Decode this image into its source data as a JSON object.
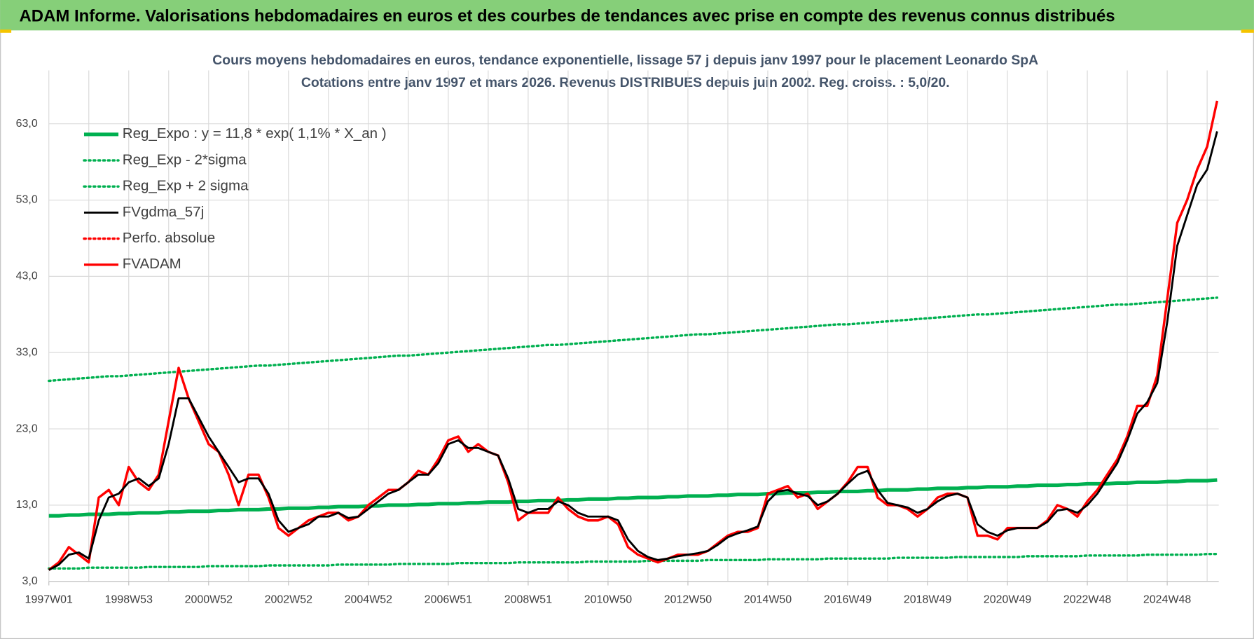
{
  "header": {
    "title": "ADAM Informe. Valorisations hebdomadaires en euros et des courbes de tendances avec prise en compte des revenus connus distribués"
  },
  "chart_data": {
    "type": "line",
    "title": "Cours moyens hebdomadaires en euros, tendance exponentielle, lissage 57 j depuis janv 1997  pour le  placement Leonardo SpA",
    "subtitle": "Cotations entre janv 1997 et mars 2026. Revenus DISTRIBUES depuis juin 2002. Reg. croiss. : 5,0/20.",
    "categories": [
      "1997W01",
      null,
      null,
      null,
      null,
      null,
      null,
      null,
      "1998W53",
      null,
      null,
      null,
      null,
      null,
      null,
      null,
      "2000W52",
      null,
      null,
      null,
      null,
      null,
      null,
      null,
      "2002W52",
      null,
      null,
      null,
      null,
      null,
      null,
      null,
      "2004W52",
      null,
      null,
      null,
      null,
      null,
      null,
      null,
      "2006W51",
      null,
      null,
      null,
      null,
      null,
      null,
      null,
      "2008W51",
      null,
      null,
      null,
      null,
      null,
      null,
      null,
      "2010W50",
      null,
      null,
      null,
      null,
      null,
      null,
      null,
      "2012W50",
      null,
      null,
      null,
      null,
      null,
      null,
      null,
      "2014W50",
      null,
      null,
      null,
      null,
      null,
      null,
      null,
      "2016W49",
      null,
      null,
      null,
      null,
      null,
      null,
      null,
      "2018W49",
      null,
      null,
      null,
      null,
      null,
      null,
      null,
      "2020W49",
      null,
      null,
      null,
      null,
      null,
      null,
      null,
      "2022W48",
      null,
      null,
      null,
      null,
      null,
      null,
      null,
      "2024W48",
      null,
      null,
      null,
      null,
      null
    ],
    "ylim": [
      3,
      70
    ],
    "yticks": [
      {
        "value": 3,
        "label": "3,0"
      },
      {
        "value": 13,
        "label": "13,0"
      },
      {
        "value": 23,
        "label": "23,0"
      },
      {
        "value": 33,
        "label": "33,0"
      },
      {
        "value": 43,
        "label": "43,0"
      },
      {
        "value": 53,
        "label": "53,0"
      },
      {
        "value": 63,
        "label": "63,0"
      }
    ],
    "grid": true,
    "legend": "upper left",
    "series": [
      {
        "name": "Reg_Expo : y = 11,8 * exp( 1,1% *  X_an )",
        "color": "#00b050",
        "style": "solid",
        "values": [
          11.6,
          11.6,
          11.7,
          11.7,
          11.8,
          11.8,
          11.8,
          11.9,
          11.9,
          12.0,
          12.0,
          12.0,
          12.1,
          12.1,
          12.2,
          12.2,
          12.2,
          12.3,
          12.3,
          12.4,
          12.4,
          12.4,
          12.5,
          12.5,
          12.6,
          12.6,
          12.6,
          12.7,
          12.7,
          12.8,
          12.8,
          12.8,
          12.9,
          12.9,
          13.0,
          13.0,
          13.0,
          13.1,
          13.1,
          13.2,
          13.2,
          13.2,
          13.3,
          13.3,
          13.4,
          13.4,
          13.4,
          13.5,
          13.5,
          13.6,
          13.6,
          13.6,
          13.7,
          13.7,
          13.8,
          13.8,
          13.8,
          13.9,
          13.9,
          14.0,
          14.0,
          14.0,
          14.1,
          14.1,
          14.2,
          14.2,
          14.2,
          14.3,
          14.3,
          14.4,
          14.4,
          14.4,
          14.5,
          14.5,
          14.6,
          14.6,
          14.6,
          14.7,
          14.7,
          14.8,
          14.8,
          14.8,
          14.9,
          14.9,
          15.0,
          15.0,
          15.0,
          15.1,
          15.1,
          15.2,
          15.2,
          15.2,
          15.3,
          15.3,
          15.4,
          15.4,
          15.4,
          15.5,
          15.5,
          15.6,
          15.6,
          15.6,
          15.7,
          15.7,
          15.8,
          15.8,
          15.8,
          15.9,
          15.9,
          16.0,
          16.0,
          16.0,
          16.1,
          16.1,
          16.2,
          16.2,
          16.2,
          16.3
        ]
      },
      {
        "name": "Reg_Exp - 2*sigma",
        "color": "#00b050",
        "style": "dotted",
        "values": [
          4.7,
          4.7,
          4.7,
          4.7,
          4.8,
          4.8,
          4.8,
          4.8,
          4.8,
          4.8,
          4.9,
          4.9,
          4.9,
          4.9,
          4.9,
          4.9,
          5.0,
          5.0,
          5.0,
          5.0,
          5.0,
          5.0,
          5.1,
          5.1,
          5.1,
          5.1,
          5.1,
          5.1,
          5.1,
          5.2,
          5.2,
          5.2,
          5.2,
          5.2,
          5.2,
          5.3,
          5.3,
          5.3,
          5.3,
          5.3,
          5.3,
          5.4,
          5.4,
          5.4,
          5.4,
          5.4,
          5.4,
          5.5,
          5.5,
          5.5,
          5.5,
          5.5,
          5.5,
          5.5,
          5.6,
          5.6,
          5.6,
          5.6,
          5.6,
          5.6,
          5.7,
          5.7,
          5.7,
          5.7,
          5.7,
          5.7,
          5.8,
          5.8,
          5.8,
          5.8,
          5.8,
          5.8,
          5.9,
          5.9,
          5.9,
          5.9,
          5.9,
          5.9,
          6.0,
          6.0,
          6.0,
          6.0,
          6.0,
          6.0,
          6.0,
          6.1,
          6.1,
          6.1,
          6.1,
          6.1,
          6.1,
          6.2,
          6.2,
          6.2,
          6.2,
          6.2,
          6.2,
          6.2,
          6.3,
          6.3,
          6.3,
          6.3,
          6.3,
          6.3,
          6.4,
          6.4,
          6.4,
          6.4,
          6.4,
          6.4,
          6.5,
          6.5,
          6.5,
          6.5,
          6.5,
          6.5,
          6.6,
          6.6
        ]
      },
      {
        "name": "Reg_Exp + 2 sigma",
        "color": "#00b050",
        "style": "dotted",
        "values": [
          29.3,
          29.4,
          29.5,
          29.6,
          29.7,
          29.8,
          29.9,
          29.9,
          30.0,
          30.1,
          30.2,
          30.3,
          30.4,
          30.5,
          30.6,
          30.7,
          30.8,
          30.9,
          31.0,
          31.1,
          31.2,
          31.3,
          31.3,
          31.4,
          31.5,
          31.6,
          31.7,
          31.8,
          31.9,
          32.0,
          32.1,
          32.2,
          32.3,
          32.4,
          32.5,
          32.6,
          32.6,
          32.7,
          32.8,
          32.9,
          33.0,
          33.1,
          33.2,
          33.3,
          33.4,
          33.5,
          33.6,
          33.7,
          33.8,
          33.9,
          34.0,
          34.0,
          34.1,
          34.2,
          34.3,
          34.4,
          34.5,
          34.6,
          34.7,
          34.8,
          34.9,
          35.0,
          35.1,
          35.2,
          35.3,
          35.4,
          35.4,
          35.5,
          35.6,
          35.7,
          35.8,
          35.9,
          36.0,
          36.1,
          36.2,
          36.3,
          36.4,
          36.5,
          36.6,
          36.7,
          36.7,
          36.8,
          36.9,
          37.0,
          37.1,
          37.2,
          37.3,
          37.4,
          37.5,
          37.6,
          37.7,
          37.8,
          37.9,
          38.0,
          38.0,
          38.1,
          38.2,
          38.3,
          38.4,
          38.5,
          38.6,
          38.7,
          38.8,
          38.9,
          39.0,
          39.1,
          39.2,
          39.3,
          39.3,
          39.4,
          39.5,
          39.6,
          39.7,
          39.8,
          39.9,
          40.0,
          40.1,
          40.2
        ]
      },
      {
        "name": "FVgdma_57j",
        "color": "#000000",
        "style": "solid",
        "values": [
          4.5,
          5.2,
          6.5,
          6.8,
          6.0,
          11,
          14,
          14.5,
          16,
          16.5,
          15.5,
          16.5,
          21,
          27,
          27,
          24.5,
          22,
          20,
          18,
          16,
          16.5,
          16.5,
          14.5,
          11,
          9.5,
          10,
          10.5,
          11.5,
          11.5,
          12,
          11.3,
          11.5,
          12.5,
          13.5,
          14.5,
          15,
          16,
          17,
          17,
          18.5,
          21,
          21.5,
          20.5,
          20.5,
          20,
          19.5,
          16.5,
          12.5,
          12,
          12.5,
          12.5,
          13.5,
          13,
          12,
          11.5,
          11.5,
          11.5,
          11,
          8.5,
          7,
          6.2,
          5.8,
          6,
          6.3,
          6.5,
          6.7,
          7,
          7.8,
          8.8,
          9.3,
          9.7,
          10.2,
          13.5,
          14.8,
          15,
          14.5,
          14.2,
          13,
          13.5,
          14.5,
          15.8,
          17,
          17.5,
          15,
          13.3,
          13,
          12.7,
          12,
          12.5,
          13.5,
          14.2,
          14.5,
          14,
          10.5,
          9.5,
          9,
          9.7,
          10,
          10,
          10,
          10.8,
          12.3,
          12.5,
          12,
          13,
          14.5,
          16.5,
          18.5,
          21.5,
          25,
          26.5,
          29,
          37,
          47,
          51,
          55,
          57,
          62
        ]
      },
      {
        "name": "Perfo. absolue",
        "color": "#ff0000",
        "style": "dotted",
        "values": [
          null,
          null,
          null,
          null,
          null,
          null,
          null,
          null,
          null,
          null,
          null,
          null,
          null,
          null,
          null,
          null,
          null,
          null,
          null,
          null,
          null,
          null,
          null,
          null,
          null,
          null,
          null,
          null,
          null,
          null,
          null,
          null,
          null,
          null,
          null,
          null,
          null,
          null,
          null,
          null,
          null,
          null,
          null,
          null,
          null,
          null,
          null,
          null,
          null,
          null,
          null,
          null,
          null,
          null,
          null,
          null,
          null,
          null,
          null,
          null,
          null,
          null,
          null,
          null,
          null,
          null,
          null,
          null,
          null,
          null,
          null,
          null,
          null,
          null,
          null,
          null,
          null,
          null,
          null,
          null,
          null,
          null,
          null,
          null,
          null,
          null,
          null,
          null,
          null,
          null,
          null,
          null,
          null,
          null,
          null,
          null,
          null,
          null,
          null,
          null,
          null,
          null,
          null,
          null,
          null,
          null,
          null,
          null,
          null,
          null,
          null,
          null,
          null,
          null,
          null,
          null,
          null,
          null
        ]
      },
      {
        "name": "FVADAM",
        "color": "#ff0000",
        "style": "solid",
        "values": [
          4.5,
          5.5,
          7.5,
          6.5,
          5.5,
          14,
          15,
          13,
          18,
          16,
          15,
          17,
          24,
          31,
          27,
          24,
          21,
          20,
          17,
          13,
          17,
          17,
          14,
          10,
          9,
          10,
          11,
          11.5,
          12,
          12,
          11,
          11.5,
          13,
          14,
          15,
          15,
          16,
          17.5,
          17,
          19,
          21.5,
          22,
          20,
          21,
          20,
          19.5,
          16,
          11,
          12,
          12,
          12,
          14,
          12.5,
          11.5,
          11,
          11,
          11.5,
          10.5,
          7.5,
          6.5,
          6,
          5.5,
          6,
          6.5,
          6.5,
          6.5,
          7,
          8,
          9,
          9.5,
          9.5,
          10,
          14.5,
          15,
          15.5,
          14,
          14.5,
          12.5,
          13.5,
          14.5,
          16,
          18,
          18,
          14,
          13,
          13,
          12.5,
          11.5,
          12.5,
          14,
          14.5,
          14.5,
          14,
          9,
          9,
          8.5,
          10,
          10,
          10,
          10,
          11,
          13,
          12.5,
          11.5,
          13.5,
          15,
          17,
          19,
          22,
          26,
          26,
          30,
          40,
          50,
          53,
          57,
          60,
          66
        ]
      }
    ]
  }
}
